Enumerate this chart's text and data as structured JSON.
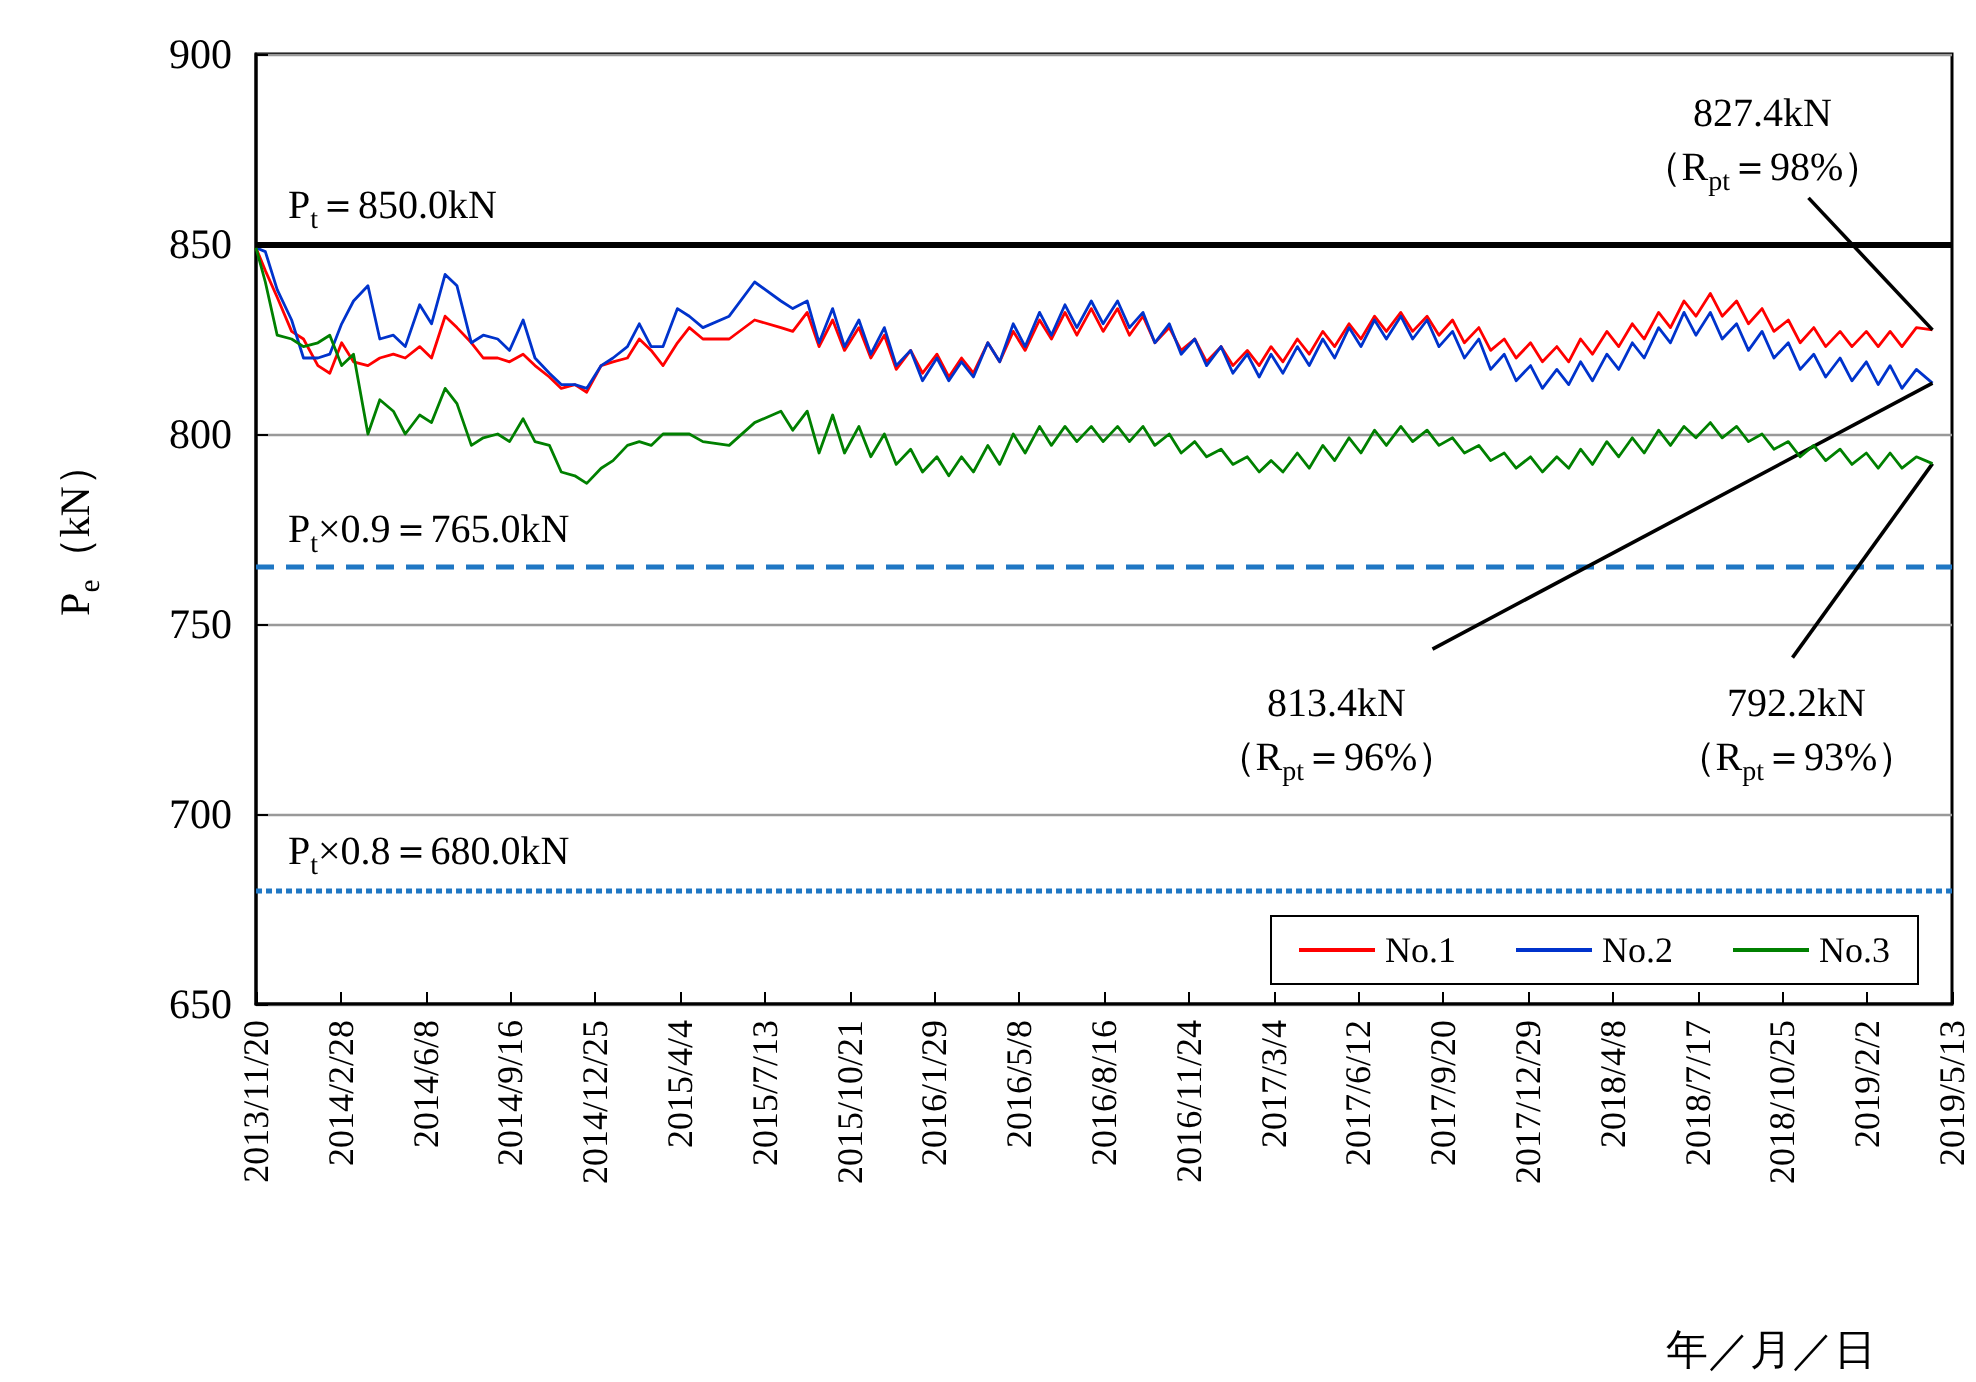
{
  "chart_data": {
    "type": "line",
    "xlabel": "年／月／日",
    "ylabel": "P$_{e}$（kN）",
    "x": [
      "2013-11-20",
      "2013-12-01",
      "2013-12-15",
      "2014-01-01",
      "2014-01-15",
      "2014-02-01",
      "2014-02-15",
      "2014-03-01",
      "2014-03-15",
      "2014-04-01",
      "2014-04-15",
      "2014-05-01",
      "2014-05-15",
      "2014-06-01",
      "2014-06-15",
      "2014-07-01",
      "2014-07-15",
      "2014-08-01",
      "2014-08-15",
      "2014-09-01",
      "2014-09-15",
      "2014-10-01",
      "2014-10-15",
      "2014-11-01",
      "2014-11-15",
      "2014-12-01",
      "2014-12-15",
      "2015-01-01",
      "2015-01-15",
      "2015-02-01",
      "2015-02-15",
      "2015-03-01",
      "2015-03-15",
      "2015-04-01",
      "2015-04-15",
      "2015-05-01",
      "2015-06-01",
      "2015-07-01",
      "2015-08-01",
      "2015-08-15",
      "2015-09-01",
      "2015-09-15",
      "2015-10-01",
      "2015-10-15",
      "2015-11-01",
      "2015-11-15",
      "2015-12-01",
      "2015-12-15",
      "2016-01-01",
      "2016-01-15",
      "2016-02-01",
      "2016-02-15",
      "2016-03-01",
      "2016-03-15",
      "2016-04-01",
      "2016-04-15",
      "2016-05-01",
      "2016-05-15",
      "2016-06-01",
      "2016-06-15",
      "2016-07-01",
      "2016-07-15",
      "2016-08-01",
      "2016-08-15",
      "2016-09-01",
      "2016-09-15",
      "2016-10-01",
      "2016-10-15",
      "2016-11-01",
      "2016-11-15",
      "2016-12-01",
      "2016-12-15",
      "2017-01-01",
      "2017-01-15",
      "2017-02-01",
      "2017-02-15",
      "2017-03-01",
      "2017-03-15",
      "2017-04-01",
      "2017-04-15",
      "2017-05-01",
      "2017-05-15",
      "2017-06-01",
      "2017-06-15",
      "2017-07-01",
      "2017-07-15",
      "2017-08-01",
      "2017-08-15",
      "2017-09-01",
      "2017-09-15",
      "2017-10-01",
      "2017-10-15",
      "2017-11-01",
      "2017-11-15",
      "2017-12-01",
      "2017-12-15",
      "2018-01-01",
      "2018-01-15",
      "2018-02-01",
      "2018-02-15",
      "2018-03-01",
      "2018-03-15",
      "2018-04-01",
      "2018-04-15",
      "2018-05-01",
      "2018-05-15",
      "2018-06-01",
      "2018-06-15",
      "2018-07-01",
      "2018-07-15",
      "2018-08-01",
      "2018-08-15",
      "2018-09-01",
      "2018-09-15",
      "2018-10-01",
      "2018-10-15",
      "2018-11-01",
      "2018-11-15",
      "2018-12-01",
      "2018-12-15",
      "2019-01-01",
      "2019-01-15",
      "2019-02-01",
      "2019-02-15",
      "2019-03-01",
      "2019-03-15",
      "2019-04-01",
      "2019-04-20"
    ],
    "series": [
      {
        "name": "No.1",
        "color": "#ff0000",
        "values": [
          849,
          843,
          836,
          827,
          825,
          818,
          816,
          824,
          819,
          818,
          820,
          821,
          820,
          823,
          820,
          831,
          828,
          824,
          820,
          820,
          819,
          821,
          818,
          815,
          812,
          813,
          811,
          818,
          819,
          820,
          825,
          822,
          818,
          824,
          828,
          825,
          825,
          830,
          828,
          827,
          832,
          823,
          830,
          822,
          828,
          820,
          826,
          817,
          822,
          816,
          821,
          815,
          820,
          816,
          824,
          819,
          827,
          822,
          830,
          825,
          832,
          826,
          833,
          827,
          833,
          826,
          831,
          824,
          828,
          822,
          825,
          819,
          823,
          818,
          822,
          818,
          823,
          819,
          825,
          821,
          827,
          823,
          829,
          825,
          831,
          827,
          832,
          827,
          831,
          826,
          830,
          824,
          828,
          822,
          825,
          820,
          824,
          819,
          823,
          819,
          825,
          821,
          827,
          823,
          829,
          825,
          832,
          828,
          835,
          831,
          837,
          831,
          835,
          829,
          833,
          827,
          830,
          824,
          828,
          823,
          827,
          823,
          827,
          823,
          827,
          823,
          828,
          827.4
        ]
      },
      {
        "name": "No.2",
        "color": "#0033cc",
        "values": [
          849,
          848,
          838,
          830,
          820,
          820,
          821,
          829,
          835,
          839,
          825,
          826,
          823,
          834,
          829,
          842,
          839,
          824,
          826,
          825,
          822,
          830,
          820,
          816,
          813,
          813,
          812,
          818,
          820,
          823,
          829,
          823,
          823,
          833,
          831,
          828,
          831,
          840,
          835,
          833,
          835,
          824,
          833,
          823,
          830,
          821,
          828,
          818,
          822,
          814,
          820,
          814,
          819,
          815,
          824,
          819,
          829,
          823,
          832,
          826,
          834,
          828,
          835,
          829,
          835,
          828,
          832,
          824,
          829,
          821,
          825,
          818,
          823,
          816,
          821,
          815,
          821,
          816,
          823,
          818,
          825,
          820,
          828,
          823,
          830,
          825,
          831,
          825,
          830,
          823,
          827,
          820,
          825,
          817,
          821,
          814,
          818,
          812,
          817,
          813,
          819,
          814,
          821,
          817,
          824,
          820,
          828,
          824,
          832,
          826,
          832,
          825,
          829,
          822,
          827,
          820,
          824,
          817,
          821,
          815,
          820,
          814,
          819,
          813,
          818,
          812,
          817,
          813.4
        ]
      },
      {
        "name": "No.3",
        "color": "#008000",
        "values": [
          849,
          840,
          826,
          825,
          823,
          824,
          826,
          818,
          821,
          800,
          809,
          806,
          800,
          805,
          803,
          812,
          808,
          797,
          799,
          800,
          798,
          804,
          798,
          797,
          790,
          789,
          787,
          791,
          793,
          797,
          798,
          797,
          800,
          800,
          800,
          798,
          797,
          803,
          806,
          801,
          806,
          795,
          805,
          795,
          802,
          794,
          800,
          792,
          796,
          790,
          794,
          789,
          794,
          790,
          797,
          792,
          800,
          795,
          802,
          797,
          802,
          798,
          802,
          798,
          802,
          798,
          802,
          797,
          800,
          795,
          798,
          794,
          796,
          792,
          794,
          790,
          793,
          790,
          795,
          791,
          797,
          793,
          799,
          795,
          801,
          797,
          802,
          798,
          801,
          797,
          799,
          795,
          797,
          793,
          795,
          791,
          794,
          790,
          794,
          791,
          796,
          792,
          798,
          794,
          799,
          795,
          801,
          797,
          802,
          799,
          803,
          799,
          802,
          798,
          800,
          796,
          798,
          794,
          797,
          793,
          796,
          792,
          795,
          791,
          795,
          791,
          794,
          792.2
        ]
      }
    ],
    "xlim": [
      "2013-11-20",
      "2019-05-13"
    ],
    "xticks": [
      {
        "value": "2013-11-20",
        "label": "2013/11/20"
      },
      {
        "value": "2014-02-28",
        "label": "2014/2/28"
      },
      {
        "value": "2014-06-08",
        "label": "2014/6/8"
      },
      {
        "value": "2014-09-16",
        "label": "2014/9/16"
      },
      {
        "value": "2014-12-25",
        "label": "2014/12/25"
      },
      {
        "value": "2015-04-04",
        "label": "2015/4/4"
      },
      {
        "value": "2015-07-13",
        "label": "2015/7/13"
      },
      {
        "value": "2015-10-21",
        "label": "2015/10/21"
      },
      {
        "value": "2016-01-29",
        "label": "2016/1/29"
      },
      {
        "value": "2016-05-08",
        "label": "2016/5/8"
      },
      {
        "value": "2016-08-16",
        "label": "2016/8/16"
      },
      {
        "value": "2016-11-24",
        "label": "2016/11/24"
      },
      {
        "value": "2017-03-04",
        "label": "2017/3/4"
      },
      {
        "value": "2017-06-12",
        "label": "2017/6/12"
      },
      {
        "value": "2017-09-20",
        "label": "2017/9/20"
      },
      {
        "value": "2017-12-29",
        "label": "2017/12/29"
      },
      {
        "value": "2018-04-08",
        "label": "2018/4/8"
      },
      {
        "value": "2018-07-17",
        "label": "2018/7/17"
      },
      {
        "value": "2018-10-25",
        "label": "2018/10/25"
      },
      {
        "value": "2019-02-02",
        "label": "2019/2/2"
      },
      {
        "value": "2019-05-13",
        "label": "2019/5/13"
      }
    ],
    "ylim": [
      650,
      900
    ],
    "yticks": [
      650,
      700,
      750,
      800,
      850,
      900
    ],
    "grid": "y",
    "legend": "bottom right",
    "marker": "none",
    "line_style": "solid",
    "ref_lines": [
      {
        "axis": "y",
        "value": 850,
        "label": "P$_{t}$＝850.0kN",
        "color": "#000000",
        "line_style": "solid"
      },
      {
        "axis": "y",
        "value": 765,
        "label": "P$_{t}$×0.9＝765.0kN",
        "color": "#1f77c4",
        "line_style": "dashed"
      },
      {
        "axis": "y",
        "value": 680,
        "label": "P$_{t}$×0.8＝680.0kN",
        "color": "#1f77c4",
        "line_style": "dotted"
      }
    ],
    "annotations": [
      {
        "text": "827.4kN\n（R$_{pt}$＝98%）",
        "x": "2019-04-20",
        "y": 827.4
      },
      {
        "text": "813.4kN\n（R$_{pt}$＝96%）",
        "x": "2019-04-20",
        "y": 813.4
      },
      {
        "text": "792.2kN\n（R$_{pt}$＝93%）",
        "x": "2019-04-20",
        "y": 792.2
      }
    ]
  }
}
